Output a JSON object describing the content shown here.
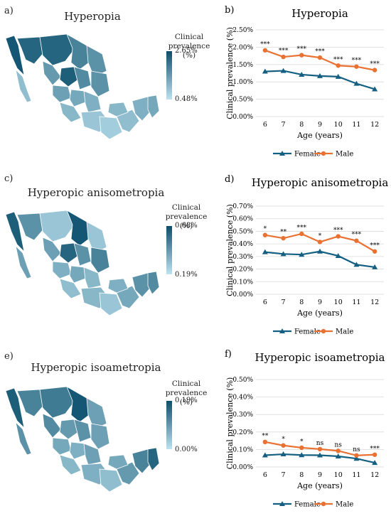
{
  "colors": {
    "female": "#156082",
    "male": "#E97132",
    "map_high": "#0B4F6C",
    "map_low": "#BDE3F0",
    "grid": "#d9d9d9"
  },
  "maps": [
    {
      "panel_label": "a)",
      "title": "Hyperopia",
      "scale_title": "Clinical prevalence (%)",
      "scale_max": "2.65%",
      "scale_min": "0.48%"
    },
    {
      "panel_label": "c)",
      "title": "Hyperopic anisometropia",
      "scale_title": "Clinical prevalence (%)",
      "scale_max": "0.68%",
      "scale_min": "0.19%"
    },
    {
      "panel_label": "e)",
      "title": "Hyperopic isoametropia",
      "scale_title": "Clinical prevalence (%)",
      "scale_max": "0.19%",
      "scale_min": "0.00%"
    }
  ],
  "chart_data": [
    {
      "type": "line",
      "panel_label": "b)",
      "title": "Hyperopia",
      "xlabel": "Age (years)",
      "ylabel": "Clinical prevalence (%)",
      "categories": [
        "6",
        "7",
        "8",
        "9",
        "10",
        "11",
        "12"
      ],
      "ylim": [
        0,
        2.5
      ],
      "yticks": [
        0,
        0.5,
        1.0,
        1.5,
        2.0,
        2.5
      ],
      "ytick_labels": [
        "0.00%",
        "0.50%",
        "1.00%",
        "1.50%",
        "2.00%",
        "2.50%"
      ],
      "series": [
        {
          "name": "Female",
          "values": [
            1.3,
            1.32,
            1.21,
            1.17,
            1.15,
            0.95,
            0.79
          ]
        },
        {
          "name": "Male",
          "values": [
            1.91,
            1.72,
            1.77,
            1.7,
            1.47,
            1.44,
            1.34
          ]
        }
      ],
      "annotations": [
        "***",
        "***",
        "***",
        "***",
        "***",
        "***",
        "***"
      ],
      "grid": true,
      "legend_position": "bottom"
    },
    {
      "type": "line",
      "panel_label": "d)",
      "title": "Hyperopic anisometropia",
      "xlabel": "Age (years)",
      "ylabel": "Clinical prevalence (%)",
      "categories": [
        "6",
        "7",
        "8",
        "9",
        "10",
        "11",
        "12"
      ],
      "ylim": [
        0,
        0.7
      ],
      "yticks": [
        0,
        0.1,
        0.2,
        0.3,
        0.4,
        0.5,
        0.6,
        0.7
      ],
      "ytick_labels": [
        "0.00%",
        "0.10%",
        "0.20%",
        "0.30%",
        "0.40%",
        "0.50%",
        "0.60%",
        "0.70%"
      ],
      "series": [
        {
          "name": "Female",
          "values": [
            0.335,
            0.32,
            0.315,
            0.34,
            0.305,
            0.235,
            0.215
          ]
        },
        {
          "name": "Male",
          "values": [
            0.47,
            0.445,
            0.48,
            0.415,
            0.46,
            0.425,
            0.34
          ]
        }
      ],
      "annotations": [
        "*",
        "**",
        "***",
        "*",
        "***",
        "***",
        "***"
      ],
      "grid": true,
      "legend_position": "bottom"
    },
    {
      "type": "line",
      "panel_label": "f)",
      "title": "Hyperopic isoametropia",
      "xlabel": "Age (years)",
      "ylabel": "Clinical prevalence (%)",
      "categories": [
        "6",
        "7",
        "8",
        "9",
        "10",
        "11",
        "12"
      ],
      "ylim": [
        0,
        0.5
      ],
      "yticks": [
        0,
        0.1,
        0.2,
        0.3,
        0.4,
        0.5
      ],
      "ytick_labels": [
        "0.00%",
        "0.10%",
        "0.20%",
        "0.30%",
        "0.40%",
        "0.50%"
      ],
      "series": [
        {
          "name": "Female",
          "values": [
            0.067,
            0.073,
            0.068,
            0.067,
            0.061,
            0.048,
            0.024
          ]
        },
        {
          "name": "Male",
          "values": [
            0.143,
            0.123,
            0.11,
            0.102,
            0.092,
            0.066,
            0.07
          ]
        }
      ],
      "annotations": [
        "**",
        "*",
        "*",
        "ns",
        "ns",
        "ns",
        "***"
      ],
      "grid": true,
      "legend_position": "bottom"
    }
  ]
}
